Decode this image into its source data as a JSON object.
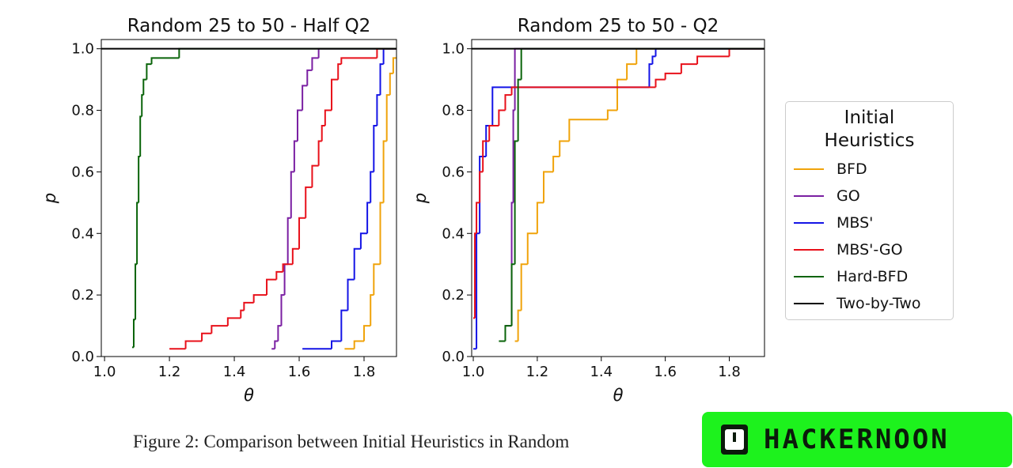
{
  "chart_data": [
    {
      "type": "line",
      "drawstyle": "steps-post",
      "title": "Random 25 to 50 - Half Q2",
      "xlabel": "θ",
      "ylabel": "p",
      "xlim": [
        0.99,
        1.9
      ],
      "ylim": [
        0,
        1.03
      ],
      "xticks": [
        {
          "value": 1.0,
          "label": "1.0"
        },
        1.2,
        1.4,
        1.6,
        1.8
      ],
      "yticks": [
        {
          "value": 0,
          "label": "0.0"
        },
        0.2,
        0.4,
        0.6,
        0.8,
        {
          "value": 1.0,
          "label": "1.0"
        }
      ],
      "series": [
        {
          "name": "BFD",
          "color": "#f0a30a",
          "x": [
            1.74,
            1.77,
            1.8,
            1.82,
            1.83,
            1.85,
            1.86,
            1.87,
            1.88,
            1.89
          ],
          "values": [
            0.025,
            0.05,
            0.1,
            0.2,
            0.3,
            0.5,
            0.7,
            0.85,
            0.92,
            0.97
          ]
        },
        {
          "name": "GO",
          "color": "#7a1fa2",
          "x": [
            1.515,
            1.525,
            1.535,
            1.545,
            1.555,
            1.565,
            1.575,
            1.585,
            1.595,
            1.61,
            1.625,
            1.64,
            1.66
          ],
          "values": [
            0.025,
            0.05,
            0.1,
            0.2,
            0.3,
            0.45,
            0.6,
            0.7,
            0.8,
            0.88,
            0.93,
            0.97,
            1.0
          ]
        },
        {
          "name": "MBS'",
          "color": "#1414e6",
          "x": [
            1.61,
            1.7,
            1.73,
            1.75,
            1.77,
            1.79,
            1.81,
            1.82,
            1.83,
            1.84,
            1.85,
            1.86
          ],
          "values": [
            0.025,
            0.05,
            0.15,
            0.25,
            0.35,
            0.4,
            0.5,
            0.6,
            0.75,
            0.85,
            0.95,
            1.0
          ]
        },
        {
          "name": "MBS'-GO",
          "color": "#e8101a",
          "x": [
            1.2,
            1.25,
            1.3,
            1.33,
            1.38,
            1.42,
            1.43,
            1.46,
            1.5,
            1.53,
            1.55,
            1.58,
            1.6,
            1.62,
            1.64,
            1.66,
            1.67,
            1.68,
            1.7,
            1.72,
            1.73,
            1.84
          ],
          "values": [
            0.025,
            0.05,
            0.075,
            0.1,
            0.125,
            0.15,
            0.175,
            0.2,
            0.25,
            0.275,
            0.3,
            0.35,
            0.45,
            0.55,
            0.62,
            0.7,
            0.75,
            0.8,
            0.9,
            0.95,
            0.97,
            1.0
          ]
        },
        {
          "name": "Hard-BFD",
          "color": "#0a640a",
          "x": [
            1.085,
            1.09,
            1.095,
            1.1,
            1.105,
            1.11,
            1.115,
            1.12,
            1.13,
            1.145,
            1.23
          ],
          "values": [
            0.03,
            0.12,
            0.3,
            0.5,
            0.65,
            0.78,
            0.85,
            0.9,
            0.95,
            0.97,
            1.0
          ]
        },
        {
          "name": "Two-by-Two",
          "color": "#000000",
          "x": [
            0.99
          ],
          "values": [
            1.0
          ]
        }
      ]
    },
    {
      "type": "line",
      "drawstyle": "steps-post",
      "title": "Random 25 to 50 - Q2",
      "xlabel": "θ",
      "ylabel": "p",
      "xlim": [
        0.995,
        1.91
      ],
      "ylim": [
        0,
        1.03
      ],
      "xticks": [
        {
          "value": 1.0,
          "label": "1.0"
        },
        1.2,
        1.4,
        1.6,
        1.8
      ],
      "yticks": [
        {
          "value": 0,
          "label": "0.0"
        },
        0.2,
        0.4,
        0.6,
        0.8,
        {
          "value": 1.0,
          "label": "1.0"
        }
      ],
      "series": [
        {
          "name": "BFD",
          "color": "#f0a30a",
          "x": [
            1.13,
            1.14,
            1.15,
            1.17,
            1.2,
            1.22,
            1.25,
            1.27,
            1.3,
            1.42,
            1.45,
            1.48,
            1.51
          ],
          "values": [
            0.05,
            0.15,
            0.3,
            0.4,
            0.5,
            0.6,
            0.65,
            0.7,
            0.77,
            0.8,
            0.9,
            0.95,
            1.0
          ]
        },
        {
          "name": "GO",
          "color": "#7a1fa2",
          "x": [
            1.1,
            1.12,
            1.125,
            1.13
          ],
          "values": [
            0.1,
            0.5,
            0.8,
            1.0
          ]
        },
        {
          "name": "MBS'",
          "color": "#1414e6",
          "x": [
            1.0,
            1.01,
            1.02,
            1.04,
            1.06,
            1.55,
            1.56,
            1.57
          ],
          "values": [
            0.025,
            0.4,
            0.65,
            0.75,
            0.875,
            0.95,
            0.975,
            1.0
          ]
        },
        {
          "name": "MBS'-GO",
          "color": "#e8101a",
          "x": [
            1.0,
            1.005,
            1.01,
            1.02,
            1.03,
            1.05,
            1.08,
            1.1,
            1.12,
            1.57,
            1.6,
            1.65,
            1.7,
            1.8
          ],
          "values": [
            0.125,
            0.4,
            0.5,
            0.6,
            0.7,
            0.75,
            0.8,
            0.85,
            0.875,
            0.9,
            0.92,
            0.95,
            0.975,
            1.0
          ]
        },
        {
          "name": "Hard-BFD",
          "color": "#0a640a",
          "x": [
            1.08,
            1.1,
            1.12,
            1.13,
            1.14,
            1.15
          ],
          "values": [
            0.05,
            0.1,
            0.3,
            0.7,
            0.9,
            1.0
          ]
        },
        {
          "name": "Two-by-Two",
          "color": "#000000",
          "x": [
            0.995
          ],
          "values": [
            1.0
          ]
        }
      ]
    }
  ],
  "legend_title": "Initial Heuristics",
  "caption": "Figure 2: Comparison between Initial Heuristics in Random",
  "badge": "HACKERNOON"
}
